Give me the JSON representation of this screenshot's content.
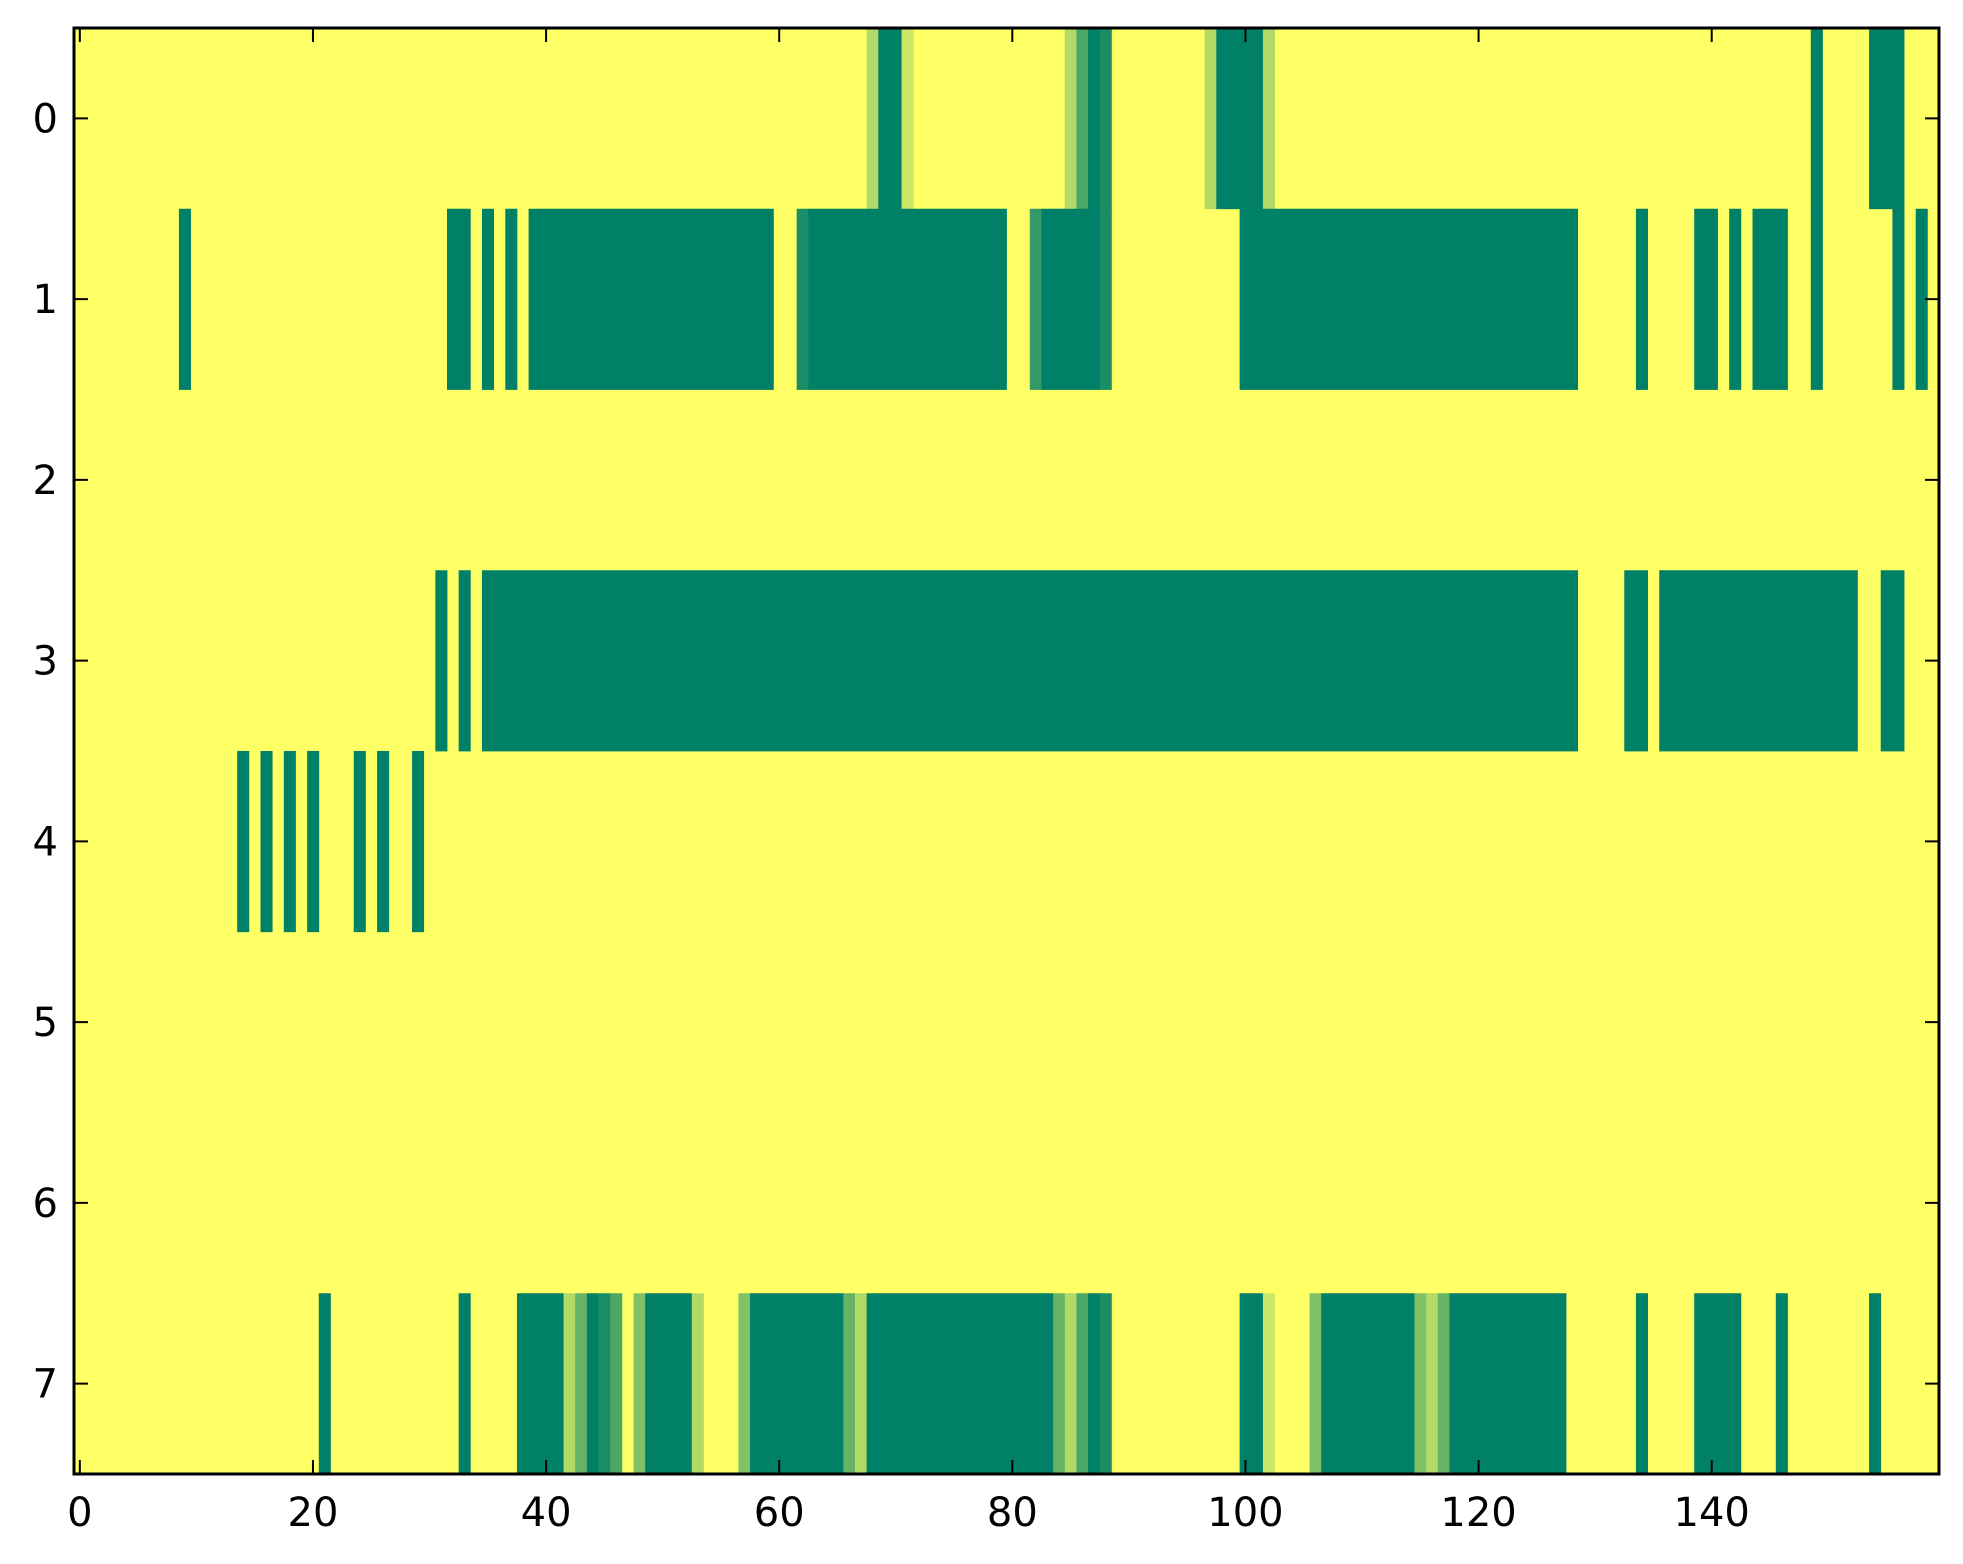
{
  "chart_data": {
    "type": "heatmap",
    "title": "",
    "xlabel": "",
    "ylabel": "",
    "n_rows": 8,
    "n_cols": 160,
    "xlim": [
      -0.5,
      159.5
    ],
    "ylim": [
      7.5,
      -0.5
    ],
    "xticks": [
      0,
      20,
      40,
      60,
      80,
      100,
      120,
      140
    ],
    "xtick_labels": [
      "0",
      "20",
      "40",
      "60",
      "80",
      "100",
      "120",
      "140"
    ],
    "yticks": [
      0,
      1,
      2,
      3,
      4,
      5,
      6,
      7
    ],
    "ytick_labels": [
      "0",
      "1",
      "2",
      "3",
      "4",
      "5",
      "6",
      "7"
    ],
    "grid": false,
    "colormap": "summer_r",
    "colors": {
      "low": "#ffff66",
      "high": "#008066"
    },
    "value_range": [
      0,
      1
    ],
    "background_value": 0,
    "cells_note": "values are 0 unless listed; runs given as [start_col, end_col_inclusive, value]",
    "rows": [
      {
        "row": 0,
        "runs": [
          [
            68,
            68,
            0.3
          ],
          [
            69,
            70,
            1
          ],
          [
            71,
            71,
            0.2
          ],
          [
            85,
            85,
            0.3
          ],
          [
            86,
            86,
            0.7
          ],
          [
            87,
            87,
            1
          ],
          [
            88,
            88,
            0.9
          ],
          [
            97,
            97,
            0.3
          ],
          [
            98,
            101,
            1
          ],
          [
            102,
            102,
            0.3
          ],
          [
            149,
            149,
            1
          ],
          [
            154,
            156,
            1
          ]
        ]
      },
      {
        "row": 1,
        "runs": [
          [
            9,
            9,
            1
          ],
          [
            32,
            33,
            1
          ],
          [
            35,
            35,
            1
          ],
          [
            37,
            37,
            1
          ],
          [
            39,
            59,
            1
          ],
          [
            62,
            62,
            0.9
          ],
          [
            63,
            79,
            1
          ],
          [
            82,
            82,
            0.8
          ],
          [
            83,
            87,
            1
          ],
          [
            88,
            88,
            0.9
          ],
          [
            100,
            128,
            1
          ],
          [
            134,
            134,
            1
          ],
          [
            139,
            140,
            1
          ],
          [
            142,
            142,
            1
          ],
          [
            144,
            146,
            1
          ],
          [
            149,
            149,
            1
          ],
          [
            156,
            156,
            1
          ],
          [
            158,
            158,
            1
          ]
        ]
      },
      {
        "row": 2,
        "runs": []
      },
      {
        "row": 3,
        "runs": [
          [
            31,
            31,
            1
          ],
          [
            33,
            33,
            1
          ],
          [
            35,
            128,
            1
          ],
          [
            133,
            134,
            1
          ],
          [
            136,
            152,
            1
          ],
          [
            155,
            156,
            1
          ]
        ]
      },
      {
        "row": 4,
        "runs": [
          [
            14,
            14,
            1
          ],
          [
            16,
            16,
            1
          ],
          [
            18,
            18,
            1
          ],
          [
            20,
            20,
            1
          ],
          [
            24,
            24,
            1
          ],
          [
            26,
            26,
            1
          ],
          [
            29,
            29,
            1
          ]
        ]
      },
      {
        "row": 5,
        "runs": []
      },
      {
        "row": 6,
        "runs": []
      },
      {
        "row": 7,
        "runs": [
          [
            21,
            21,
            1
          ],
          [
            33,
            33,
            1
          ],
          [
            38,
            41,
            1
          ],
          [
            42,
            42,
            0.3
          ],
          [
            43,
            43,
            0.6
          ],
          [
            44,
            44,
            1
          ],
          [
            45,
            45,
            0.9
          ],
          [
            46,
            46,
            0.7
          ],
          [
            48,
            48,
            0.5
          ],
          [
            49,
            52,
            1
          ],
          [
            53,
            53,
            0.3
          ],
          [
            57,
            57,
            0.5
          ],
          [
            58,
            65,
            1
          ],
          [
            66,
            66,
            0.6
          ],
          [
            67,
            67,
            0.3
          ],
          [
            68,
            68,
            1
          ],
          [
            69,
            83,
            1
          ],
          [
            84,
            84,
            0.6
          ],
          [
            85,
            85,
            0.3
          ],
          [
            86,
            86,
            0.7
          ],
          [
            87,
            87,
            1
          ],
          [
            88,
            88,
            0.9
          ],
          [
            100,
            101,
            1
          ],
          [
            102,
            102,
            0.2
          ],
          [
            106,
            106,
            0.5
          ],
          [
            107,
            114,
            1
          ],
          [
            115,
            115,
            0.5
          ],
          [
            116,
            116,
            0.3
          ],
          [
            117,
            117,
            0.6
          ],
          [
            118,
            127,
            1
          ],
          [
            134,
            134,
            1
          ],
          [
            139,
            142,
            1
          ],
          [
            146,
            146,
            1
          ],
          [
            154,
            154,
            1
          ]
        ]
      }
    ]
  }
}
